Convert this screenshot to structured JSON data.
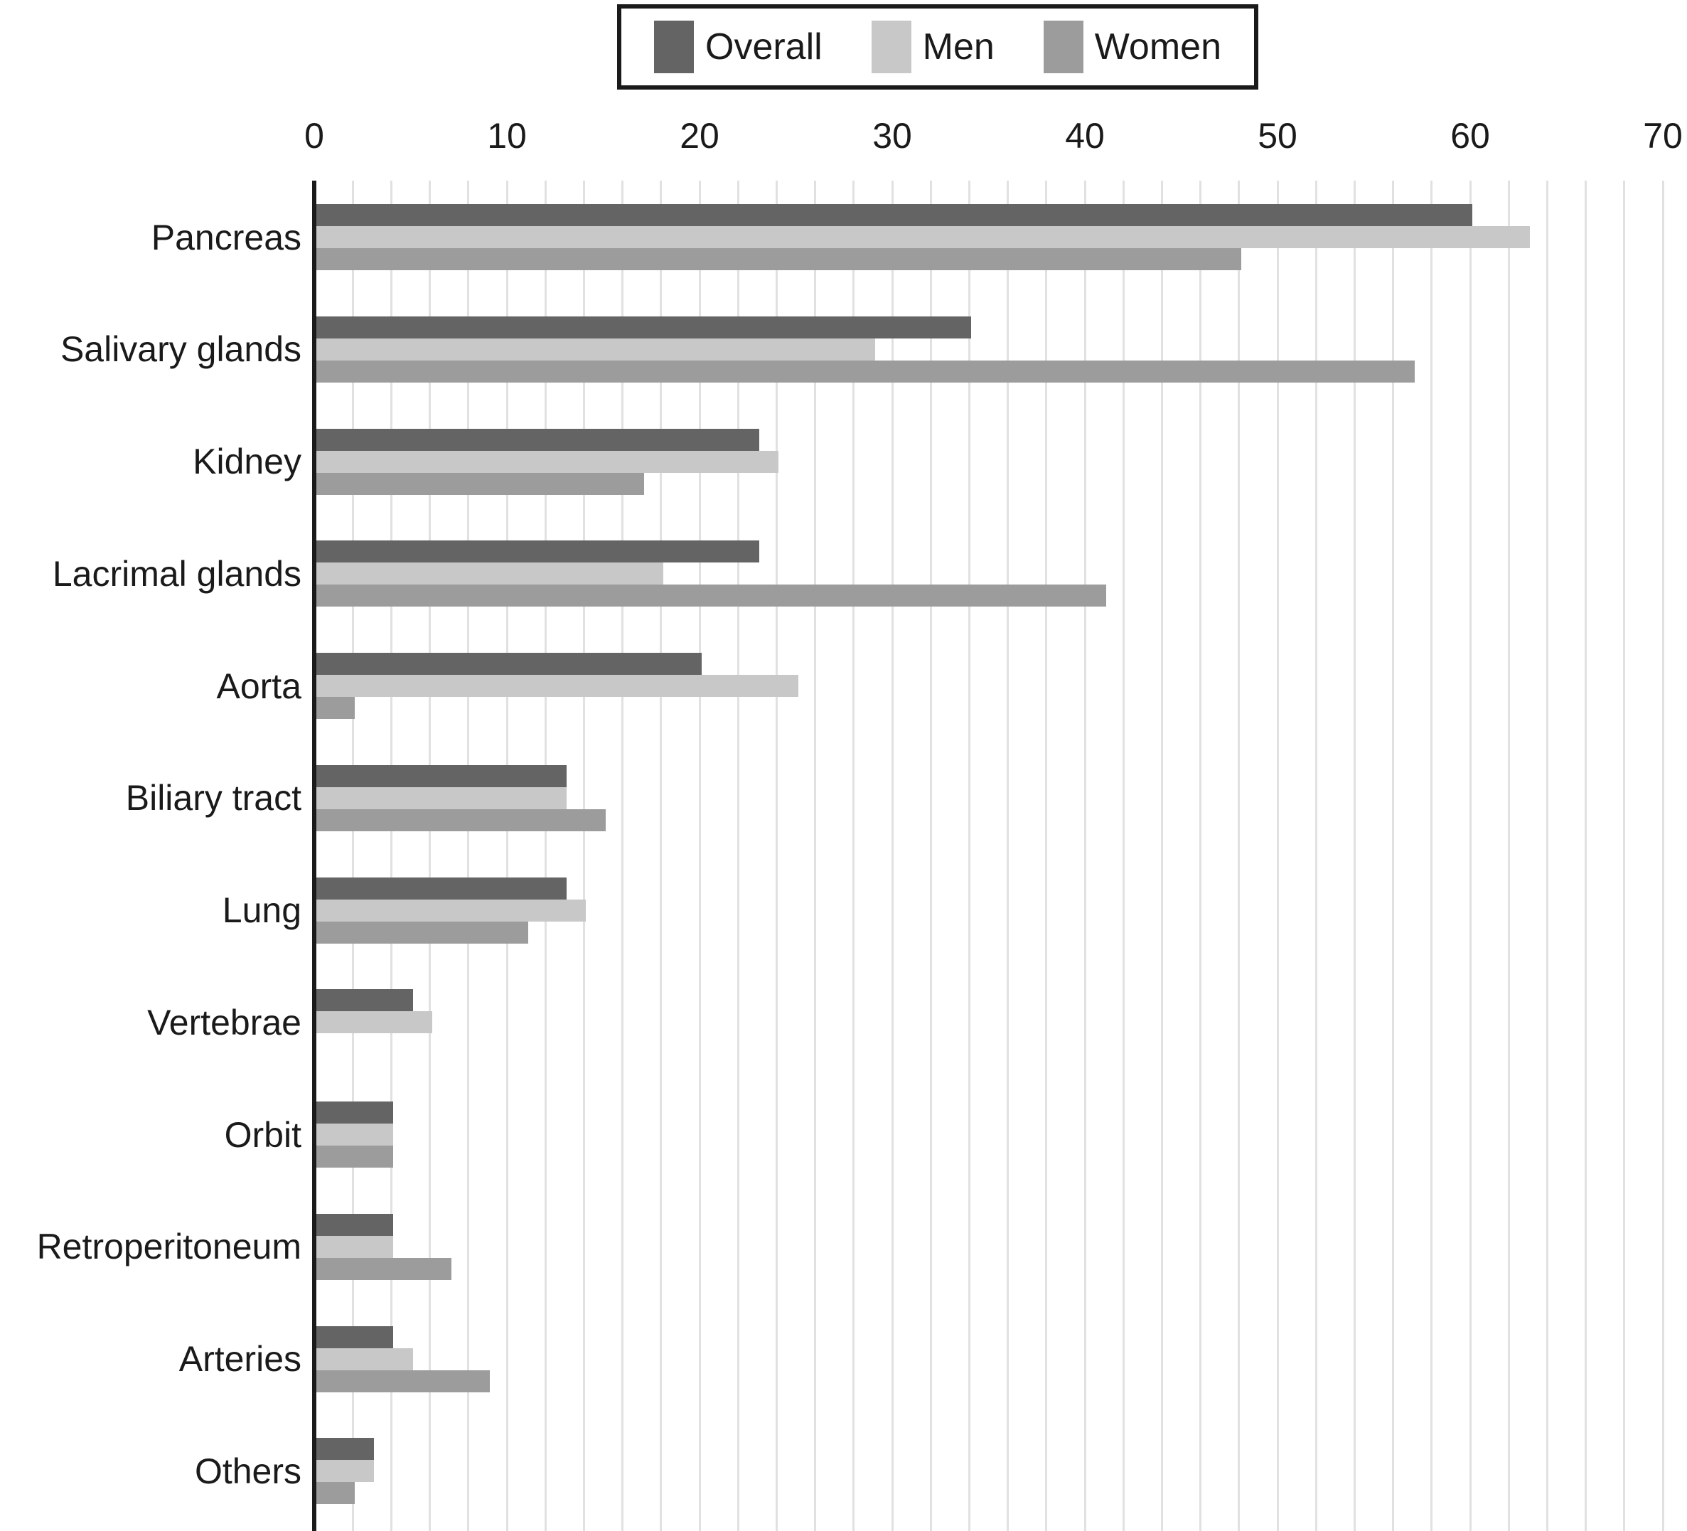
{
  "chart_data": {
    "type": "bar",
    "orientation": "horizontal",
    "title": "",
    "xlabel": "",
    "ylabel": "",
    "xlim": [
      0,
      70
    ],
    "xticks": [
      0,
      10,
      20,
      30,
      40,
      50,
      60,
      70
    ],
    "grid": "vertical minor gridlines every 2 units",
    "legend_position": "top-center",
    "categories": [
      "Pancreas",
      "Salivary glands",
      "Kidney",
      "Lacrimal glands",
      "Aorta",
      "Biliary tract",
      "Lung",
      "Vertebrae",
      "Orbit",
      "Retroperitoneum",
      "Arteries",
      "Others"
    ],
    "series": [
      {
        "name": "Overall",
        "color": "#646464",
        "values": [
          60,
          34,
          23,
          23,
          20,
          13,
          13,
          5,
          4,
          4,
          4,
          3
        ]
      },
      {
        "name": "Men",
        "color": "#c8c8c8",
        "values": [
          63,
          29,
          24,
          18,
          25,
          13,
          14,
          6,
          4,
          4,
          5,
          3
        ]
      },
      {
        "name": "Women",
        "color": "#9c9c9c",
        "values": [
          48,
          57,
          17,
          41,
          2,
          15,
          11,
          0,
          4,
          7,
          9,
          2
        ]
      }
    ]
  },
  "colors": {
    "axis": "#1a1a1a",
    "gridline": "#e1e1e1",
    "background": "#ffffff",
    "legend_border": "#1a1a1a"
  }
}
